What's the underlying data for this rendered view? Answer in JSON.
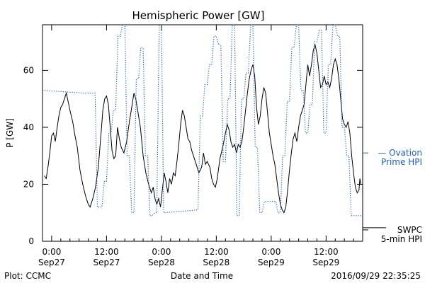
{
  "chart_data": {
    "type": "line",
    "title": "Hemispheric Power [GW]",
    "xlabel": "Date and Time",
    "ylabel": "P [GW]",
    "ylim": [
      0,
      76
    ],
    "xlim_hours": [
      -2,
      68
    ],
    "grid": false,
    "x_ticks": [
      {
        "hour": 0,
        "time": "0:00",
        "date": "Sep27"
      },
      {
        "hour": 12,
        "time": "12:00",
        "date": "Sep27"
      },
      {
        "hour": 24,
        "time": "0:00",
        "date": "Sep28"
      },
      {
        "hour": 36,
        "time": "12:00",
        "date": "Sep28"
      },
      {
        "hour": 48,
        "time": "0:00",
        "date": "Sep29"
      },
      {
        "hour": 60,
        "time": "12:00",
        "date": "Sep29"
      }
    ],
    "y_ticks": [
      0,
      20,
      40,
      60
    ],
    "series": [
      {
        "name": "SWPC 5-min HPI",
        "color": "#000000",
        "style": "solid",
        "points": [
          [
            -1.6,
            23
          ],
          [
            -1.2,
            22
          ],
          [
            -0.8,
            26
          ],
          [
            -0.4,
            31
          ],
          [
            0.0,
            37
          ],
          [
            0.4,
            38
          ],
          [
            0.8,
            35
          ],
          [
            1.2,
            40
          ],
          [
            1.6,
            44
          ],
          [
            2.0,
            47
          ],
          [
            2.4,
            48
          ],
          [
            2.8,
            50
          ],
          [
            3.2,
            52
          ],
          [
            3.6,
            49
          ],
          [
            4.0,
            46
          ],
          [
            4.6,
            42
          ],
          [
            5.0,
            38
          ],
          [
            5.6,
            33
          ],
          [
            6.2,
            25
          ],
          [
            6.8,
            20
          ],
          [
            7.4,
            16
          ],
          [
            8.0,
            13
          ],
          [
            8.4,
            12
          ],
          [
            9.0,
            15
          ],
          [
            9.6,
            19
          ],
          [
            10.2,
            26
          ],
          [
            10.8,
            38
          ],
          [
            11.2,
            46
          ],
          [
            11.6,
            50
          ],
          [
            12.0,
            51
          ],
          [
            12.4,
            48
          ],
          [
            12.8,
            40
          ],
          [
            13.2,
            32
          ],
          [
            13.6,
            29
          ],
          [
            14.0,
            30
          ],
          [
            14.4,
            40
          ],
          [
            14.8,
            36
          ],
          [
            15.2,
            33
          ],
          [
            15.8,
            31
          ],
          [
            16.4,
            35
          ],
          [
            17.0,
            42
          ],
          [
            17.6,
            48
          ],
          [
            18.0,
            52
          ],
          [
            18.4,
            50
          ],
          [
            18.8,
            46
          ],
          [
            19.4,
            40
          ],
          [
            20.0,
            30
          ],
          [
            20.6,
            24
          ],
          [
            21.2,
            20
          ],
          [
            21.8,
            17
          ],
          [
            22.2,
            19
          ],
          [
            22.6,
            15
          ],
          [
            23.0,
            13
          ],
          [
            23.4,
            15
          ],
          [
            23.8,
            12
          ],
          [
            24.2,
            18
          ],
          [
            24.6,
            24
          ],
          [
            25.0,
            21
          ],
          [
            25.4,
            17
          ],
          [
            25.8,
            22
          ],
          [
            26.2,
            20
          ],
          [
            26.6,
            24
          ],
          [
            27.0,
            23
          ],
          [
            27.4,
            28
          ],
          [
            27.8,
            34
          ],
          [
            28.2,
            41
          ],
          [
            28.6,
            46
          ],
          [
            29.0,
            44
          ],
          [
            29.4,
            40
          ],
          [
            29.8,
            36
          ],
          [
            30.2,
            35
          ],
          [
            30.6,
            32
          ],
          [
            31.0,
            30
          ],
          [
            31.6,
            27
          ],
          [
            32.2,
            24
          ],
          [
            32.8,
            26
          ],
          [
            33.2,
            31
          ],
          [
            33.6,
            27
          ],
          [
            34.0,
            28
          ],
          [
            34.6,
            26
          ],
          [
            35.0,
            22
          ],
          [
            35.4,
            20
          ],
          [
            35.8,
            19
          ],
          [
            36.2,
            22
          ],
          [
            36.8,
            29
          ],
          [
            37.4,
            33
          ],
          [
            38.0,
            38
          ],
          [
            38.4,
            41
          ],
          [
            38.8,
            39
          ],
          [
            39.2,
            35
          ],
          [
            39.6,
            33
          ],
          [
            40.0,
            34
          ],
          [
            40.4,
            31
          ],
          [
            40.8,
            34
          ],
          [
            41.2,
            33
          ],
          [
            41.6,
            35
          ],
          [
            42.0,
            40
          ],
          [
            42.4,
            46
          ],
          [
            42.8,
            52
          ],
          [
            43.2,
            57
          ],
          [
            43.6,
            60
          ],
          [
            44.0,
            62
          ],
          [
            44.4,
            58
          ],
          [
            44.8,
            47
          ],
          [
            45.2,
            41
          ],
          [
            45.6,
            44
          ],
          [
            46.0,
            50
          ],
          [
            46.4,
            54
          ],
          [
            46.8,
            52
          ],
          [
            47.2,
            45
          ],
          [
            47.6,
            38
          ],
          [
            48.0,
            34
          ],
          [
            48.4,
            30
          ],
          [
            48.8,
            27
          ],
          [
            49.2,
            22
          ],
          [
            49.6,
            17
          ],
          [
            50.0,
            13
          ],
          [
            50.4,
            11
          ],
          [
            50.8,
            10
          ],
          [
            51.2,
            12
          ],
          [
            51.6,
            18
          ],
          [
            52.0,
            25
          ],
          [
            52.4,
            31
          ],
          [
            52.8,
            36
          ],
          [
            53.2,
            38
          ],
          [
            53.6,
            35
          ],
          [
            54.0,
            40
          ],
          [
            54.4,
            44
          ],
          [
            54.8,
            46
          ],
          [
            55.2,
            48
          ],
          [
            55.6,
            55
          ],
          [
            56.0,
            62
          ],
          [
            56.4,
            58
          ],
          [
            56.8,
            62
          ],
          [
            57.2,
            67
          ],
          [
            57.6,
            69
          ],
          [
            58.0,
            66
          ],
          [
            58.4,
            60
          ],
          [
            58.8,
            54
          ],
          [
            59.2,
            55
          ],
          [
            59.6,
            58
          ],
          [
            60.0,
            55
          ],
          [
            60.4,
            56
          ],
          [
            60.8,
            54
          ],
          [
            61.2,
            57
          ],
          [
            61.6,
            62
          ],
          [
            62.0,
            64
          ],
          [
            62.4,
            62
          ],
          [
            62.8,
            57
          ],
          [
            63.2,
            50
          ],
          [
            63.6,
            43
          ],
          [
            64.0,
            41
          ],
          [
            64.4,
            40
          ],
          [
            64.8,
            42
          ],
          [
            65.2,
            38
          ],
          [
            65.6,
            30
          ],
          [
            66.0,
            24
          ],
          [
            66.4,
            19
          ],
          [
            66.8,
            17
          ],
          [
            67.2,
            18
          ],
          [
            67.4,
            22
          ],
          [
            67.6,
            20
          ]
        ]
      },
      {
        "name": "Ovation Prime HPI",
        "color": "#1f5fbf",
        "style": "dotted",
        "points": [
          [
            -2,
            53
          ],
          [
            7,
            52
          ],
          [
            9.5,
            52
          ],
          [
            10,
            12
          ],
          [
            11,
            12
          ],
          [
            11.5,
            21
          ],
          [
            12,
            21
          ],
          [
            12.5,
            38
          ],
          [
            13,
            38
          ],
          [
            13.5,
            46
          ],
          [
            14,
            46
          ],
          [
            14.5,
            72
          ],
          [
            15,
            72
          ],
          [
            15.5,
            76
          ],
          [
            16,
            76
          ],
          [
            16.5,
            30
          ],
          [
            17,
            30
          ],
          [
            17.5,
            10
          ],
          [
            18,
            10
          ],
          [
            18.5,
            57
          ],
          [
            19,
            57
          ],
          [
            19.5,
            68
          ],
          [
            20,
            68
          ],
          [
            20.5,
            30
          ],
          [
            21,
            30
          ],
          [
            21.5,
            9
          ],
          [
            22,
            9
          ],
          [
            22.5,
            10
          ],
          [
            23,
            10
          ],
          [
            23.5,
            76
          ],
          [
            24,
            76
          ],
          [
            24.5,
            10
          ],
          [
            32,
            11
          ],
          [
            32.5,
            44
          ],
          [
            33,
            44
          ],
          [
            33.5,
            55
          ],
          [
            34,
            55
          ],
          [
            34.5,
            62
          ],
          [
            35,
            62
          ],
          [
            35.5,
            72
          ],
          [
            36,
            72
          ],
          [
            36.5,
            69
          ],
          [
            37,
            69
          ],
          [
            37.5,
            28
          ],
          [
            38,
            28
          ],
          [
            38.5,
            50
          ],
          [
            39,
            50
          ],
          [
            39.5,
            76
          ],
          [
            40,
            76
          ],
          [
            40.5,
            9
          ],
          [
            41,
            9
          ],
          [
            41.5,
            50
          ],
          [
            42,
            50
          ],
          [
            42.5,
            59
          ],
          [
            43,
            59
          ],
          [
            43.5,
            76
          ],
          [
            44,
            76
          ],
          [
            44.5,
            33
          ],
          [
            45,
            33
          ],
          [
            45.5,
            10
          ],
          [
            46,
            10
          ],
          [
            46.5,
            14
          ],
          [
            49,
            14
          ],
          [
            49.5,
            10
          ],
          [
            50,
            10
          ],
          [
            50.5,
            30
          ],
          [
            51,
            30
          ],
          [
            51.5,
            49
          ],
          [
            52,
            49
          ],
          [
            52.5,
            68
          ],
          [
            53,
            68
          ],
          [
            53.5,
            76
          ],
          [
            54,
            76
          ],
          [
            54.5,
            53
          ],
          [
            55,
            53
          ],
          [
            55.5,
            38
          ],
          [
            56,
            38
          ],
          [
            56.5,
            48
          ],
          [
            57,
            48
          ],
          [
            57.5,
            70
          ],
          [
            58,
            70
          ],
          [
            58.5,
            74
          ],
          [
            59,
            74
          ],
          [
            59.5,
            38
          ],
          [
            60,
            38
          ],
          [
            60.5,
            62
          ],
          [
            61,
            62
          ],
          [
            61.5,
            76
          ],
          [
            62,
            76
          ],
          [
            62.5,
            72
          ],
          [
            63,
            72
          ],
          [
            63.5,
            40
          ],
          [
            64,
            40
          ],
          [
            64.5,
            30
          ],
          [
            65,
            30
          ],
          [
            65.5,
            9
          ],
          [
            68,
            9
          ]
        ]
      }
    ],
    "legend": [
      {
        "label_lines": [
          "— Ovation",
          "Prime HPI"
        ],
        "color": "#1f5fbf",
        "position": "right",
        "value": 31
      },
      {
        "label_lines": [
          "SWPC",
          "5-min HPI"
        ],
        "color": "#000000",
        "position": "right",
        "value": 4
      }
    ]
  },
  "footer": {
    "left": "Plot: CCMC",
    "right": "2016/09/29 22:35:25"
  }
}
